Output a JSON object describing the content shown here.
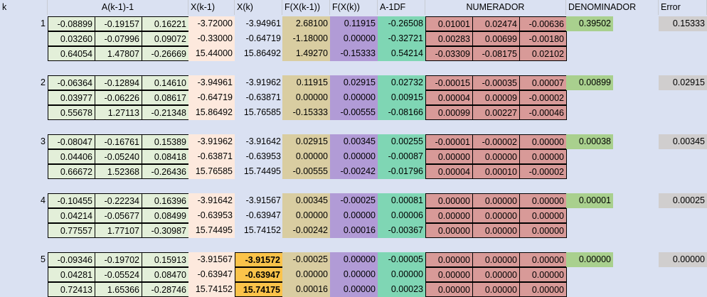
{
  "headers": {
    "k": "k",
    "a": "A(k-1)-1",
    "xk1": "X(k-1)",
    "xk": "X(k)",
    "fxk1": "F(X(k-1))",
    "fxk": "F(X(k))",
    "a1df": "A-1DF",
    "num": "NUMERADOR",
    "den": "DENOMINADOR",
    "err": "Error"
  },
  "iterations": [
    {
      "k": "1",
      "a": [
        [
          "-0.08899",
          "-0.19157",
          "0.16221"
        ],
        [
          "0.03260",
          "-0.07996",
          "0.09072"
        ],
        [
          "0.64054",
          "1.47807",
          "-0.26669"
        ]
      ],
      "xk1": [
        "-3.72000",
        "-0.33000",
        "15.44000"
      ],
      "xk": [
        "-3.94961",
        "-0.64719",
        "15.86492"
      ],
      "fxk1": [
        "2.68100",
        "-1.18000",
        "1.49270"
      ],
      "fxk": [
        "0.11915",
        "0.00000",
        "-0.15333"
      ],
      "a1df": [
        "-0.26508",
        "-0.32721",
        "0.54214"
      ],
      "num": [
        [
          "0.01001",
          "0.02474",
          "-0.00636"
        ],
        [
          "0.00283",
          "0.00699",
          "-0.00180"
        ],
        [
          "-0.03309",
          "-0.08175",
          "0.02102"
        ]
      ],
      "den": "0.39502",
      "err": "0.15333"
    },
    {
      "k": "2",
      "a": [
        [
          "-0.06364",
          "-0.12894",
          "0.14610"
        ],
        [
          "0.03977",
          "-0.06226",
          "0.08617"
        ],
        [
          "0.55678",
          "1.27113",
          "-0.21348"
        ]
      ],
      "xk1": [
        "-3.94961",
        "-0.64719",
        "15.86492"
      ],
      "xk": [
        "-3.91962",
        "-0.63871",
        "15.76585"
      ],
      "fxk1": [
        "0.11915",
        "0.00000",
        "-0.15333"
      ],
      "fxk": [
        "0.02915",
        "0.00000",
        "-0.00555"
      ],
      "a1df": [
        "0.02732",
        "0.00915",
        "-0.08166"
      ],
      "num": [
        [
          "-0.00015",
          "-0.00035",
          "0.00007"
        ],
        [
          "0.00004",
          "0.00009",
          "-0.00002"
        ],
        [
          "0.00099",
          "0.00227",
          "-0.00046"
        ]
      ],
      "den": "0.00899",
      "err": "0.02915"
    },
    {
      "k": "3",
      "a": [
        [
          "-0.08047",
          "-0.16761",
          "0.15389"
        ],
        [
          "0.04406",
          "-0.05240",
          "0.08418"
        ],
        [
          "0.66672",
          "1.52368",
          "-0.26436"
        ]
      ],
      "xk1": [
        "-3.91962",
        "-0.63871",
        "15.76585"
      ],
      "xk": [
        "-3.91642",
        "-0.63953",
        "15.74495"
      ],
      "fxk1": [
        "0.02915",
        "0.00000",
        "-0.00555"
      ],
      "fxk": [
        "0.00345",
        "0.00000",
        "-0.00242"
      ],
      "a1df": [
        "0.00255",
        "-0.00087",
        "-0.01796"
      ],
      "num": [
        [
          "-0.00001",
          "-0.00002",
          "0.00000"
        ],
        [
          "0.00000",
          "0.00000",
          "0.00000"
        ],
        [
          "0.00004",
          "0.00010",
          "-0.00002"
        ]
      ],
      "den": "0.00038",
      "err": "0.00345"
    },
    {
      "k": "4",
      "a": [
        [
          "-0.10455",
          "-0.22234",
          "0.16396"
        ],
        [
          "0.04214",
          "-0.05677",
          "0.08499"
        ],
        [
          "0.77557",
          "1.77107",
          "-0.30987"
        ]
      ],
      "xk1": [
        "-3.91642",
        "-0.63953",
        "15.74495"
      ],
      "xk": [
        "-3.91567",
        "-0.63947",
        "15.74152"
      ],
      "fxk1": [
        "0.00345",
        "0.00000",
        "-0.00242"
      ],
      "fxk": [
        "-0.00025",
        "0.00000",
        "0.00016"
      ],
      "a1df": [
        "0.00081",
        "0.00006",
        "-0.00367"
      ],
      "num": [
        [
          "0.00000",
          "0.00000",
          "0.00000"
        ],
        [
          "0.00000",
          "0.00000",
          "0.00000"
        ],
        [
          "0.00000",
          "0.00000",
          "0.00000"
        ]
      ],
      "den": "0.00001",
      "err": "0.00025"
    },
    {
      "k": "5",
      "a": [
        [
          "-0.09346",
          "-0.19702",
          "0.15913"
        ],
        [
          "0.04281",
          "-0.05524",
          "0.08470"
        ],
        [
          "0.72413",
          "1.65366",
          "-0.28746"
        ]
      ],
      "xk1": [
        "-3.91567",
        "-0.63947",
        "15.74152"
      ],
      "xk": [
        "-3.91572",
        "-0.63947",
        "15.74175"
      ],
      "fxk1": [
        "-0.00025",
        "0.00000",
        "0.00016"
      ],
      "fxk": [
        "0.00000",
        "0.00000",
        "0.00000"
      ],
      "a1df": [
        "-0.00005",
        "0.00000",
        "0.00023"
      ],
      "num": [
        [
          "0.00000",
          "0.00000",
          "0.00000"
        ],
        [
          "0.00000",
          "0.00000",
          "0.00000"
        ],
        [
          "0.00000",
          "0.00000",
          "0.00000"
        ]
      ],
      "den": "0.00000",
      "err": "0.00000"
    }
  ]
}
